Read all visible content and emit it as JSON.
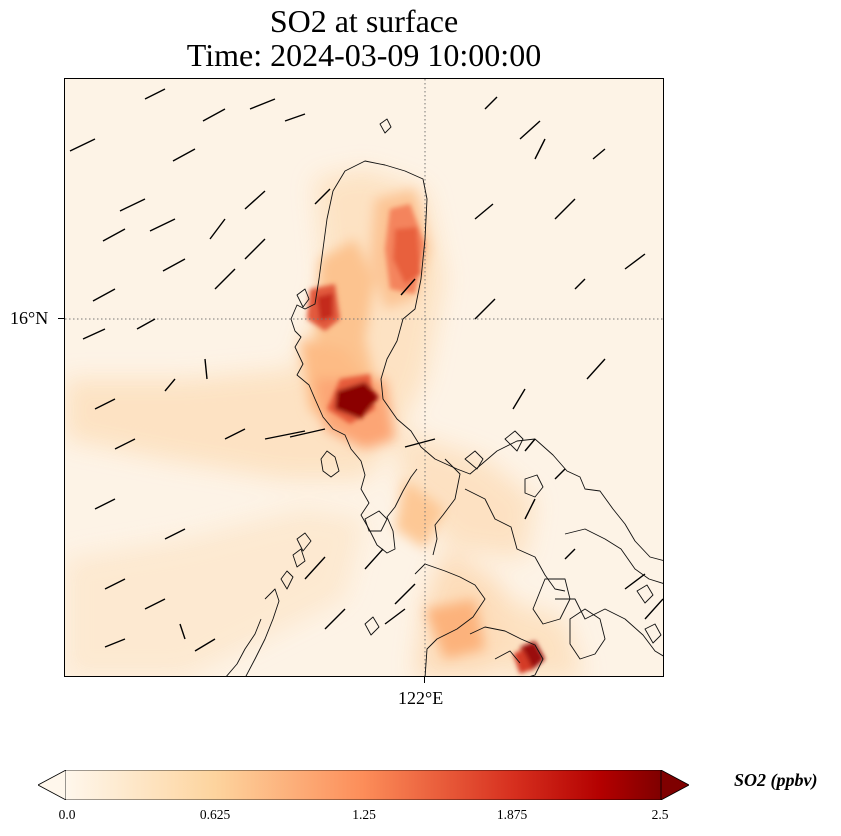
{
  "title": {
    "line1": "SO2 at surface",
    "line2": "Time: 2024-03-09 10:00:00"
  },
  "map": {
    "lat_label": "16°N",
    "lon_label": "122°E",
    "background_color": "#fdf3e6",
    "coastline_color": "#000000",
    "gridline_style": "dotted"
  },
  "colorbar": {
    "label": "SO2 (ppbv)",
    "min": 0.0,
    "max": 2.5,
    "extend": "both",
    "ticks": [
      "0.0",
      "0.625",
      "1.25",
      "1.875",
      "2.5"
    ],
    "colormap": "OrRd",
    "colors": [
      "#fff7ec",
      "#fdd49e",
      "#fc8d59",
      "#d7301f",
      "#7f0000"
    ]
  }
}
